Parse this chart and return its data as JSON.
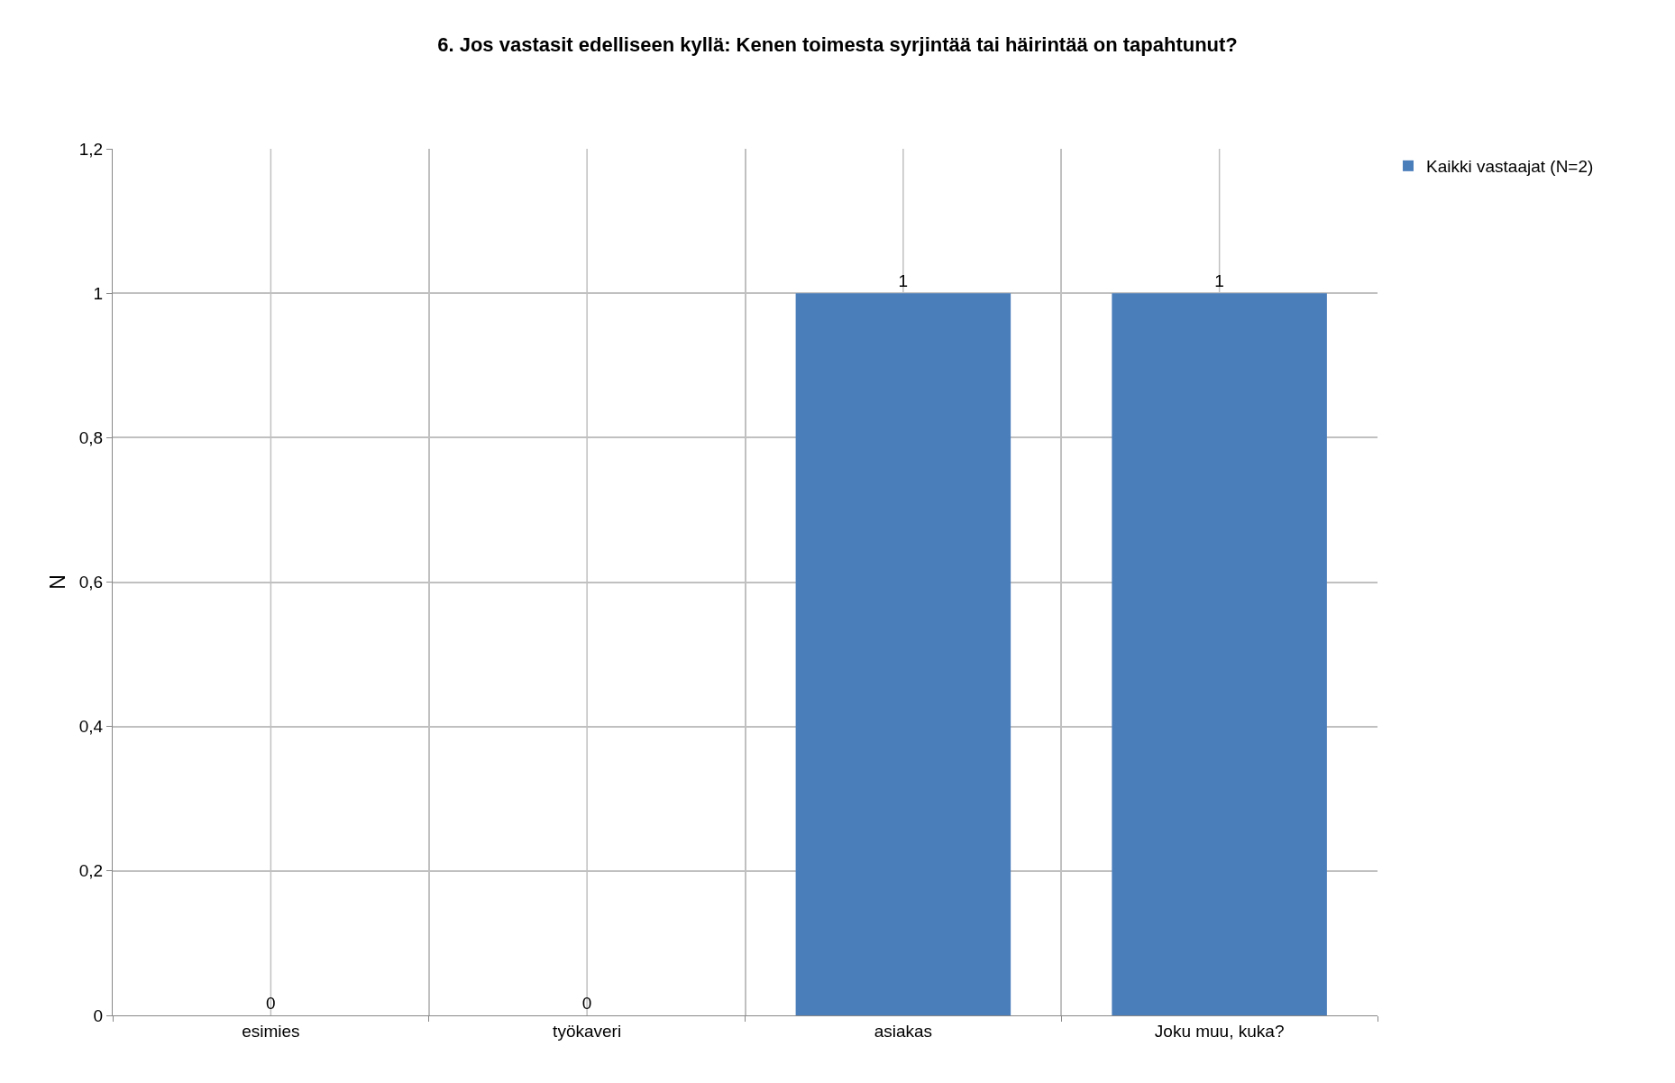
{
  "chart_data": {
    "type": "bar",
    "title": "6. Jos vastasit edelliseen kyllä: Kenen toimesta syrjintää tai häirintää on tapahtunut?",
    "ylabel": "N",
    "categories": [
      "esimies",
      "työkaveri",
      "asiakas",
      "Joku muu, kuka?"
    ],
    "series": [
      {
        "name": "Kaikki vastaajat (N=2)",
        "color": "#4a7ebb",
        "values": [
          0,
          0,
          1,
          1
        ]
      }
    ],
    "ylim": [
      0,
      1.2
    ],
    "yticks": [
      {
        "value": 0,
        "label": "0"
      },
      {
        "value": 0.2,
        "label": "0,2"
      },
      {
        "value": 0.4,
        "label": "0,4"
      },
      {
        "value": 0.6,
        "label": "0,6"
      },
      {
        "value": 0.8,
        "label": "0,8"
      },
      {
        "value": 1,
        "label": "1"
      },
      {
        "value": 1.2,
        "label": "1,2"
      }
    ],
    "grid": true,
    "legend": "top right",
    "data_labels": true
  }
}
